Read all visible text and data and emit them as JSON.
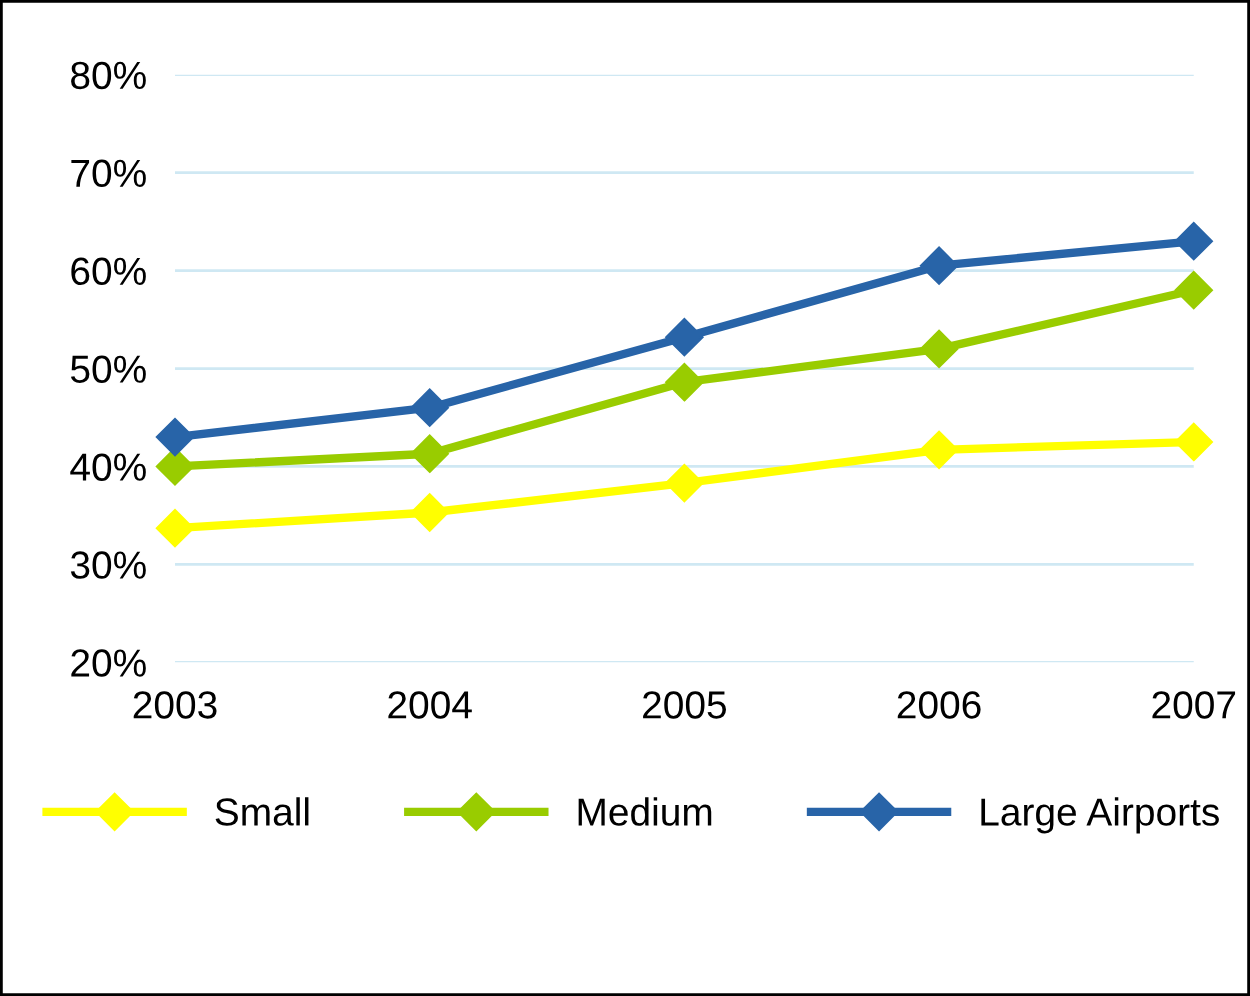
{
  "chart_data": {
    "type": "line",
    "categories": [
      "2003",
      "2004",
      "2005",
      "2006",
      "2007"
    ],
    "series": [
      {
        "name": "Small",
        "color": "#ffff00",
        "values": [
          33.7,
          35.3,
          38.3,
          41.7,
          42.5
        ]
      },
      {
        "name": "Medium",
        "color": "#99cc00",
        "values": [
          40,
          41.3,
          48.6,
          52,
          58
        ]
      },
      {
        "name": "Large Airports",
        "color": "#2864a8",
        "values": [
          43,
          46,
          53.2,
          60.5,
          63
        ]
      }
    ],
    "ylim": [
      20,
      80
    ],
    "yticks": [
      {
        "value": 20,
        "label": "20%"
      },
      {
        "value": 30,
        "label": "30%"
      },
      {
        "value": 40,
        "label": "40%"
      },
      {
        "value": 50,
        "label": "50%"
      },
      {
        "value": 60,
        "label": "60%"
      },
      {
        "value": 70,
        "label": "70%"
      },
      {
        "value": 80,
        "label": "80%"
      }
    ],
    "grid": "y",
    "legend": "bottom",
    "marker": "diamond",
    "line_style": "solid"
  }
}
